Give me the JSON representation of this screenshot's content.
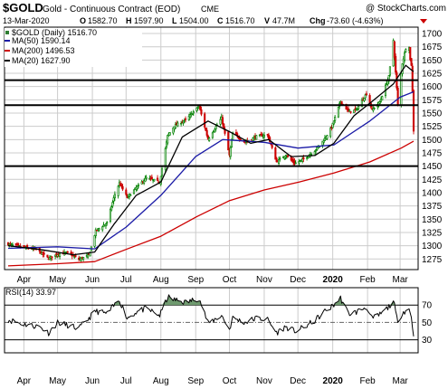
{
  "header": {
    "symbol": "$GOLD",
    "description": "Gold - Continuous Contract (EOD)",
    "exchange": "CME",
    "watermark": "@ StockCharts.com",
    "date": "13-Mar-2020",
    "open_label": "O",
    "open": "1582.70",
    "high_label": "H",
    "high": "1597.90",
    "low_label": "L",
    "low": "1504.00",
    "close_label": "C",
    "close": "1516.70",
    "volume_label": "V",
    "volume": "47.7M",
    "change_label": "Chg",
    "change": "-73.60 (-4.63%)",
    "change_color": "#cc0000"
  },
  "legend": {
    "price": "$GOLD (Daily) 1516.70",
    "ma50": "MA(50) 1590.14",
    "ma200": "MA(200) 1496.53",
    "ma20": "MA(20) 1627.90"
  },
  "rsi_label": "RSI(14) 33.97",
  "colors": {
    "up": "#008000",
    "down": "#cc0000",
    "ma50": "#1a1aa6",
    "ma200": "#cc0000",
    "ma20": "#000000",
    "rsi_fill": "#6f9a6f",
    "grid": "#cccccc"
  },
  "x_axis_labels": [
    {
      "label": "Apr",
      "bold": false
    },
    {
      "label": "May",
      "bold": false
    },
    {
      "label": "Jun",
      "bold": false
    },
    {
      "label": "Jul",
      "bold": false
    },
    {
      "label": "Aug",
      "bold": false
    },
    {
      "label": "Sep",
      "bold": false
    },
    {
      "label": "Oct",
      "bold": false
    },
    {
      "label": "Nov",
      "bold": false
    },
    {
      "label": "Dec",
      "bold": false
    },
    {
      "label": "2020",
      "bold": true
    },
    {
      "label": "Feb",
      "bold": false
    },
    {
      "label": "Mar",
      "bold": false
    }
  ],
  "chart_data": [
    {
      "type": "line",
      "title": "$GOLD Gold - Continuous Contract (EOD)",
      "y_range": [
        1255,
        1712
      ],
      "y_ticks": [
        1275,
        1300,
        1325,
        1350,
        1375,
        1400,
        1425,
        1450,
        1475,
        1500,
        1525,
        1550,
        1575,
        1600,
        1625,
        1650,
        1675,
        1700
      ],
      "horizontal_lines": [
        1450,
        1565,
        1612
      ],
      "grid": true,
      "month_ticks": [
        "2019-04-01",
        "2019-05-01",
        "2019-06-01",
        "2019-07-01",
        "2019-08-01",
        "2019-09-01",
        "2019-10-01",
        "2019-11-01",
        "2019-12-01",
        "2020-01-01",
        "2020-02-01",
        "2020-03-01"
      ],
      "x_range": [
        "2019-03-18",
        "2020-03-13"
      ],
      "price_anchors": [
        [
          "2019-03-18",
          1303
        ],
        [
          "2019-04-01",
          1297
        ],
        [
          "2019-04-12",
          1293
        ],
        [
          "2019-04-23",
          1276
        ],
        [
          "2019-05-01",
          1284
        ],
        [
          "2019-05-10",
          1287
        ],
        [
          "2019-05-20",
          1274
        ],
        [
          "2019-05-29",
          1282
        ],
        [
          "2019-06-04",
          1328
        ],
        [
          "2019-06-14",
          1343
        ],
        [
          "2019-06-21",
          1397
        ],
        [
          "2019-06-25",
          1418
        ],
        [
          "2019-07-02",
          1391
        ],
        [
          "2019-07-10",
          1409
        ],
        [
          "2019-07-19",
          1428
        ],
        [
          "2019-07-31",
          1420
        ],
        [
          "2019-08-07",
          1507
        ],
        [
          "2019-08-13",
          1526
        ],
        [
          "2019-08-23",
          1537
        ],
        [
          "2019-09-04",
          1563
        ],
        [
          "2019-09-12",
          1501
        ],
        [
          "2019-09-24",
          1541
        ],
        [
          "2019-10-01",
          1470
        ],
        [
          "2019-10-04",
          1512
        ],
        [
          "2019-10-15",
          1495
        ],
        [
          "2019-10-25",
          1506
        ],
        [
          "2019-11-04",
          1509
        ],
        [
          "2019-11-12",
          1458
        ],
        [
          "2019-11-20",
          1471
        ],
        [
          "2019-11-28",
          1455
        ],
        [
          "2019-12-06",
          1463
        ],
        [
          "2019-12-16",
          1479
        ],
        [
          "2019-12-24",
          1499
        ],
        [
          "2019-12-31",
          1523
        ],
        [
          "2020-01-08",
          1572
        ],
        [
          "2020-01-15",
          1553
        ],
        [
          "2020-01-22",
          1556
        ],
        [
          "2020-01-31",
          1587
        ],
        [
          "2020-02-05",
          1556
        ],
        [
          "2020-02-12",
          1571
        ],
        [
          "2020-02-20",
          1619
        ],
        [
          "2020-02-24",
          1687
        ],
        [
          "2020-02-28",
          1566
        ],
        [
          "2020-03-03",
          1644
        ],
        [
          "2020-03-06",
          1672
        ],
        [
          "2020-03-09",
          1675
        ],
        [
          "2020-03-10",
          1650
        ],
        [
          "2020-03-11",
          1641
        ],
        [
          "2020-03-12",
          1590
        ],
        [
          "2020-03-13",
          1517
        ]
      ],
      "series": [
        {
          "name": "MA(50)",
          "points": [
            [
              "2019-03-18",
              1295
            ],
            [
              "2019-05-01",
              1298
            ],
            [
              "2019-06-03",
              1294
            ],
            [
              "2019-07-01",
              1335
            ],
            [
              "2019-08-01",
              1395
            ],
            [
              "2019-09-01",
              1468
            ],
            [
              "2019-09-25",
              1500
            ],
            [
              "2019-11-01",
              1495
            ],
            [
              "2019-12-01",
              1484
            ],
            [
              "2020-01-02",
              1490
            ],
            [
              "2020-02-03",
              1535
            ],
            [
              "2020-03-01",
              1580
            ],
            [
              "2020-03-13",
              1590
            ]
          ]
        },
        {
          "name": "MA(200)",
          "points": [
            [
              "2019-03-18",
              1262
            ],
            [
              "2019-05-01",
              1266
            ],
            [
              "2019-06-03",
              1270
            ],
            [
              "2019-07-01",
              1293
            ],
            [
              "2019-08-01",
              1318
            ],
            [
              "2019-09-02",
              1355
            ],
            [
              "2019-10-01",
              1385
            ],
            [
              "2019-11-01",
              1405
            ],
            [
              "2019-12-02",
              1420
            ],
            [
              "2020-01-02",
              1437
            ],
            [
              "2020-02-03",
              1458
            ],
            [
              "2020-03-02",
              1484
            ],
            [
              "2020-03-13",
              1497
            ]
          ]
        },
        {
          "name": "MA(20)",
          "points": [
            [
              "2019-03-18",
              1300
            ],
            [
              "2019-04-15",
              1293
            ],
            [
              "2019-05-15",
              1283
            ],
            [
              "2019-06-03",
              1288
            ],
            [
              "2019-06-20",
              1340
            ],
            [
              "2019-07-10",
              1395
            ],
            [
              "2019-08-01",
              1420
            ],
            [
              "2019-08-20",
              1505
            ],
            [
              "2019-09-12",
              1535
            ],
            [
              "2019-10-01",
              1515
            ],
            [
              "2019-10-20",
              1493
            ],
            [
              "2019-11-05",
              1500
            ],
            [
              "2019-11-25",
              1468
            ],
            [
              "2019-12-16",
              1470
            ],
            [
              "2020-01-02",
              1493
            ],
            [
              "2020-01-20",
              1545
            ],
            [
              "2020-02-05",
              1572
            ],
            [
              "2020-02-24",
              1605
            ],
            [
              "2020-03-06",
              1640
            ],
            [
              "2020-03-13",
              1628
            ]
          ]
        }
      ]
    },
    {
      "type": "line",
      "title": "RSI(14) 33.97",
      "y_range": [
        15,
        90
      ],
      "y_ticks": [
        30,
        50,
        70
      ],
      "reference_lines": [
        30,
        50,
        70
      ],
      "points": [
        [
          "2019-03-18",
          53
        ],
        [
          "2019-04-01",
          48
        ],
        [
          "2019-04-15",
          45
        ],
        [
          "2019-04-23",
          38
        ],
        [
          "2019-05-01",
          50
        ],
        [
          "2019-05-20",
          43
        ],
        [
          "2019-06-04",
          63
        ],
        [
          "2019-06-14",
          60
        ],
        [
          "2019-06-25",
          76
        ],
        [
          "2019-07-02",
          55
        ],
        [
          "2019-07-10",
          62
        ],
        [
          "2019-07-19",
          66
        ],
        [
          "2019-07-31",
          58
        ],
        [
          "2019-08-07",
          79
        ],
        [
          "2019-08-13",
          76
        ],
        [
          "2019-08-23",
          73
        ],
        [
          "2019-09-04",
          78
        ],
        [
          "2019-09-12",
          49
        ],
        [
          "2019-09-24",
          58
        ],
        [
          "2019-10-01",
          42
        ],
        [
          "2019-10-04",
          55
        ],
        [
          "2019-10-15",
          50
        ],
        [
          "2019-10-25",
          55
        ],
        [
          "2019-11-04",
          53
        ],
        [
          "2019-11-12",
          38
        ],
        [
          "2019-11-20",
          45
        ],
        [
          "2019-11-28",
          40
        ],
        [
          "2019-12-06",
          44
        ],
        [
          "2019-12-16",
          52
        ],
        [
          "2019-12-24",
          62
        ],
        [
          "2019-12-31",
          68
        ],
        [
          "2020-01-08",
          78
        ],
        [
          "2020-01-15",
          60
        ],
        [
          "2020-01-22",
          62
        ],
        [
          "2020-01-31",
          68
        ],
        [
          "2020-02-05",
          54
        ],
        [
          "2020-02-12",
          59
        ],
        [
          "2020-02-20",
          68
        ],
        [
          "2020-02-24",
          76
        ],
        [
          "2020-02-28",
          48
        ],
        [
          "2020-03-03",
          62
        ],
        [
          "2020-03-09",
          65
        ],
        [
          "2020-03-11",
          56
        ],
        [
          "2020-03-13",
          34
        ]
      ]
    }
  ]
}
